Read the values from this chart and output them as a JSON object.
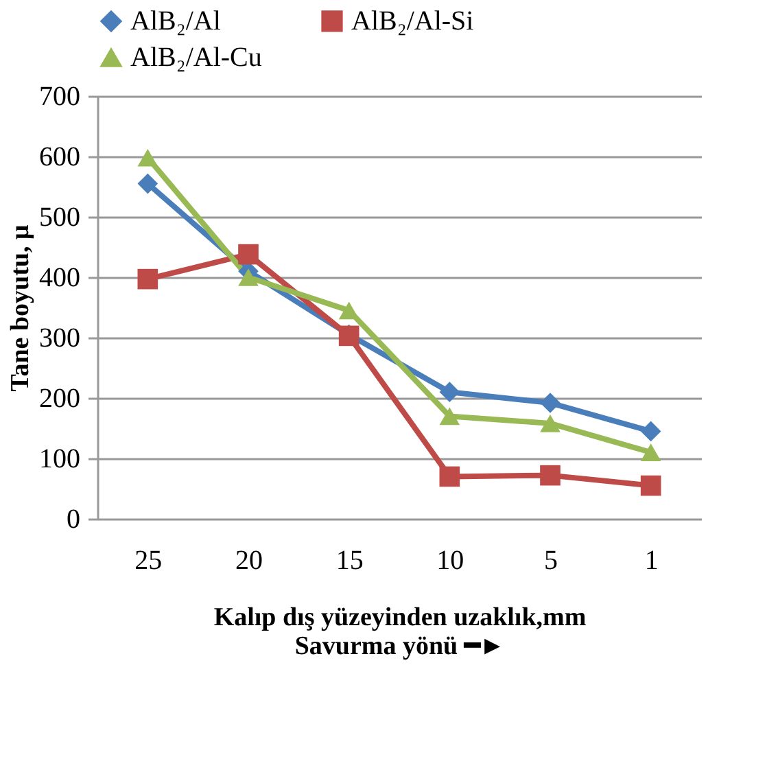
{
  "chart_data": {
    "type": "line",
    "categories": [
      "25",
      "20",
      "15",
      "10",
      "5",
      "1"
    ],
    "xlabel": "Kalıp dış yüzeyinden uzaklık,mm\nSavurma yönü  ━►",
    "ylabel": "Tane boyutu, μ",
    "ylim": [
      0,
      700
    ],
    "yticks": [
      0,
      100,
      200,
      300,
      400,
      500,
      600,
      700
    ],
    "grid": "y",
    "legend": "top",
    "line_style": "solid",
    "series": [
      {
        "name": "AlB₂/Al",
        "color": "#4a7ebb",
        "marker": "diamond",
        "values": [
          555,
          410,
          305,
          210,
          192,
          145
        ]
      },
      {
        "name": "AlB₂/Al-Si",
        "color": "#be4b48",
        "marker": "square",
        "values": [
          397,
          438,
          303,
          70,
          72,
          55
        ]
      },
      {
        "name": "AlB₂/Al-Cu",
        "color": "#98b954",
        "marker": "triangle",
        "values": [
          598,
          400,
          345,
          170,
          158,
          110
        ]
      }
    ]
  }
}
